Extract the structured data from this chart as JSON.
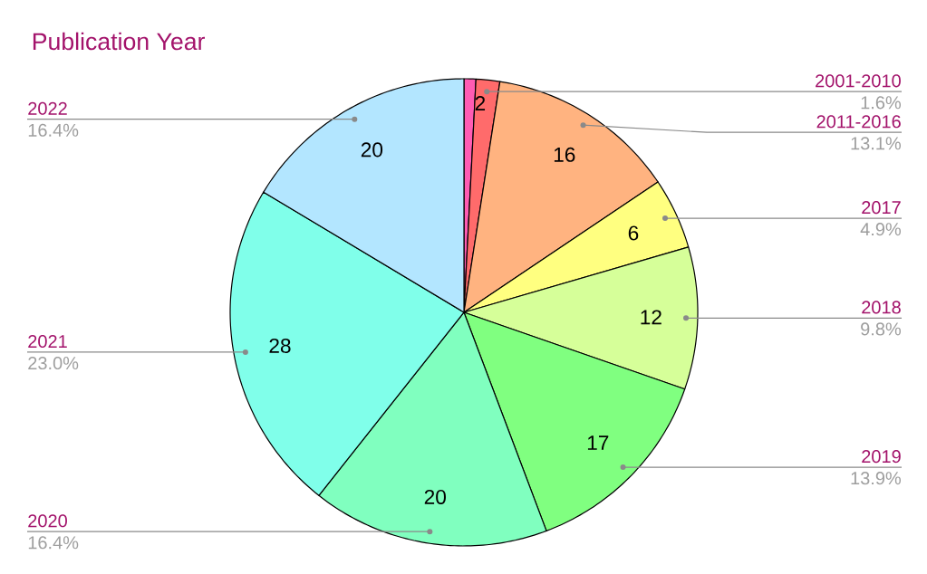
{
  "chart_data": {
    "type": "pie",
    "title": "Publication Year",
    "categories": [
      null,
      "2001-2010",
      "2011-2016",
      "2017",
      "2018",
      "2019",
      "2020",
      "2021",
      "2022"
    ],
    "values": [
      1,
      2,
      16,
      6,
      12,
      17,
      20,
      28,
      20
    ],
    "colors": [
      "#ff5cb3",
      "#ff6b6b",
      "#ffb380",
      "#ffff80",
      "#d6ff99",
      "#80ff80",
      "#80ffbf",
      "#80ffea",
      "#b3e6ff"
    ],
    "value_labels": [
      null,
      "2",
      "16",
      "6",
      "12",
      "17",
      "20",
      "28",
      "20"
    ],
    "annotations": [
      "1.6%",
      "13.1%",
      "4.9%",
      "9.8%",
      "13.9%",
      "16.4%",
      "23.0%",
      "16.4%"
    ]
  }
}
